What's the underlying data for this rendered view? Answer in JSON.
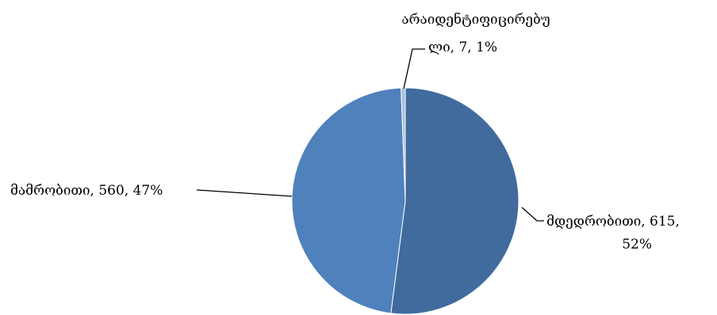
{
  "chart_data": {
    "type": "pie",
    "slices": [
      {
        "label": "მდედრობითი",
        "value": 615,
        "percent": "52%",
        "color": "#416b9d"
      },
      {
        "label": "მამრობითი",
        "value": 560,
        "percent": "47%",
        "color": "#4f81bd"
      },
      {
        "label": "არაიდენტიფიცირებული",
        "value": 7,
        "percent": "1%",
        "color": "#a9bedb"
      }
    ],
    "data_labels": {
      "female": [
        "მდედრობითი, 615,",
        "52%"
      ],
      "male": [
        "მამრობითი, 560, 47%"
      ],
      "unidentified": [
        "არაიდენტიფიცირებუ",
        "ლი, 7, 1%"
      ]
    }
  }
}
